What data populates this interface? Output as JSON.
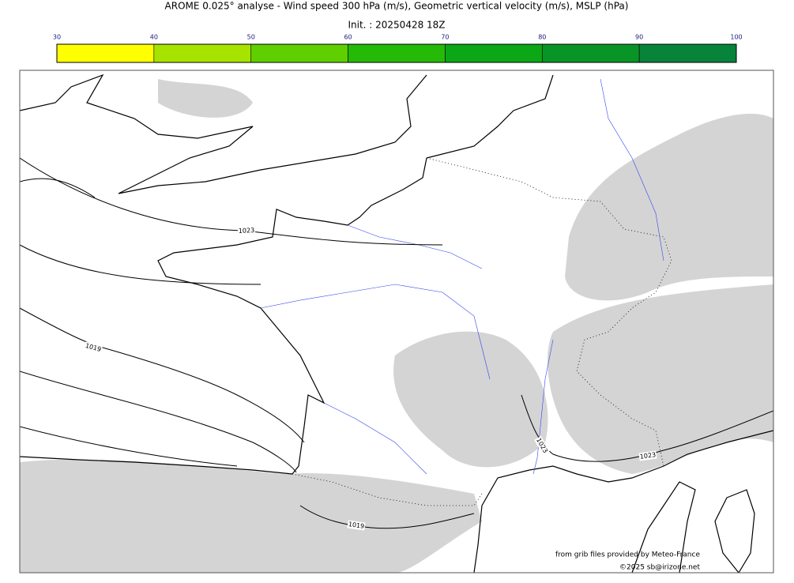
{
  "header": {
    "title": "AROME 0.025° analyse - Wind speed 300 hPa (m/s), Geometric vertical velocity (m/s), MSLP (hPa)",
    "subtitle": "Init. : 20250428 18Z"
  },
  "colorbar": {
    "ticks": [
      30,
      40,
      50,
      60,
      70,
      80,
      90,
      100
    ],
    "colors": [
      "#ffff00",
      "#a6e400",
      "#5fcf00",
      "#25b908",
      "#0ba716",
      "#089526",
      "#08843a",
      "#07774f"
    ]
  },
  "contours": {
    "labels": [
      1023,
      1019,
      1023,
      1023,
      1019
    ]
  },
  "credits": {
    "source": "from grib files provided by Meteo-France",
    "copyright": "©2025 sb@irizone.net"
  }
}
